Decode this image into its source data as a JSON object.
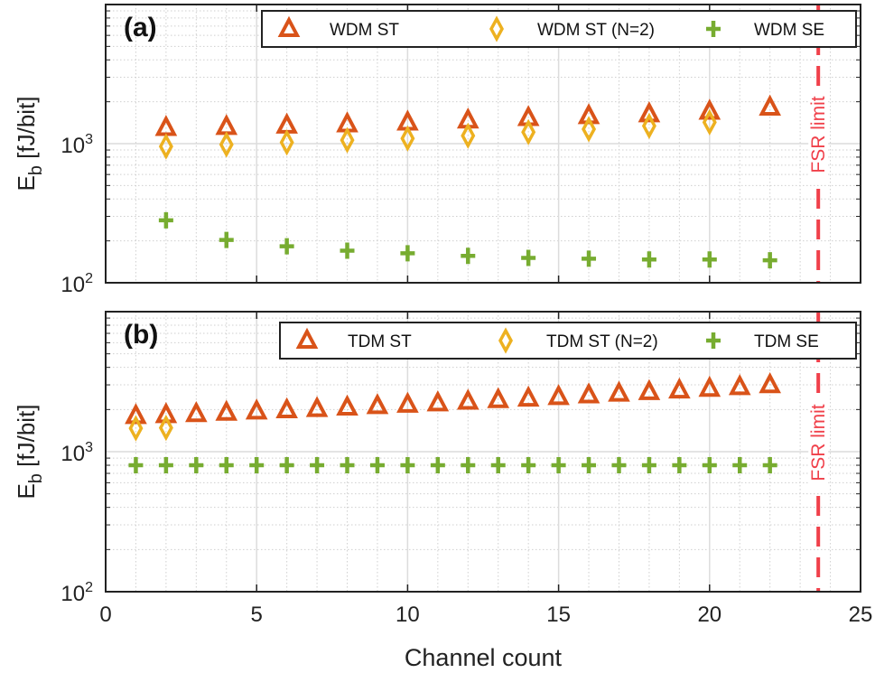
{
  "chart_data": [
    {
      "type": "scatter",
      "panel_label": "(a)",
      "ylabel_main": "E",
      "ylabel_sub": "b",
      "ylabel_unit": " [fJ/bit]",
      "xlim": [
        0,
        25
      ],
      "ylim": [
        100,
        10000
      ],
      "yscale": "log",
      "grid": true,
      "legend_placement": "top-right",
      "annotation": {
        "text": "FSR limit",
        "x": 23.6,
        "color": "#f0404a"
      },
      "series": [
        {
          "name": "WDM ST",
          "marker": "triangle",
          "color": "#d95319",
          "x": [
            2,
            4,
            6,
            8,
            10,
            12,
            14,
            16,
            18,
            20,
            22
          ],
          "y": [
            1300,
            1320,
            1350,
            1380,
            1420,
            1470,
            1530,
            1580,
            1630,
            1700,
            1820
          ]
        },
        {
          "name": "WDM ST (N=2)",
          "marker": "diamond",
          "color": "#edb120",
          "x": [
            2,
            4,
            6,
            8,
            10,
            12,
            14,
            16,
            18,
            20
          ],
          "y": [
            955,
            985,
            1020,
            1060,
            1090,
            1140,
            1210,
            1270,
            1340,
            1425
          ]
        },
        {
          "name": "WDM SE",
          "marker": "plus",
          "color": "#77ac30",
          "x": [
            2,
            4,
            6,
            8,
            10,
            12,
            14,
            16,
            18,
            20,
            22
          ],
          "y": [
            281,
            203,
            183,
            170,
            163,
            156,
            151,
            149,
            147,
            147,
            145
          ]
        }
      ],
      "yticks": [
        {
          "base": "10",
          "exp": "2"
        },
        {
          "base": "10",
          "exp": "3"
        }
      ]
    },
    {
      "type": "scatter",
      "panel_label": "(b)",
      "ylabel_main": "E",
      "ylabel_sub": "b",
      "ylabel_unit": " [fJ/bit]",
      "xlim": [
        0,
        25
      ],
      "ylim": [
        100,
        10000
      ],
      "yscale": "log",
      "grid": true,
      "legend_placement": "top-right",
      "annotation": {
        "text": "FSR limit",
        "x": 23.6,
        "color": "#f0404a"
      },
      "series": [
        {
          "name": "TDM ST",
          "marker": "triangle",
          "color": "#d95319",
          "x": [
            1,
            2,
            3,
            4,
            5,
            6,
            7,
            8,
            9,
            10,
            11,
            12,
            13,
            14,
            15,
            16,
            17,
            18,
            19,
            20,
            21,
            22
          ],
          "y": [
            1800,
            1830,
            1860,
            1900,
            1940,
            1980,
            2020,
            2070,
            2120,
            2170,
            2220,
            2280,
            2340,
            2400,
            2460,
            2530,
            2600,
            2670,
            2740,
            2820,
            2900,
            2990
          ]
        },
        {
          "name": "TDM ST (N=2)",
          "marker": "diamond",
          "color": "#edb120",
          "x": [
            1,
            2
          ],
          "y": [
            1470,
            1480
          ]
        },
        {
          "name": "TDM SE",
          "marker": "plus",
          "color": "#77ac30",
          "x": [
            1,
            2,
            3,
            4,
            5,
            6,
            7,
            8,
            9,
            10,
            11,
            12,
            13,
            14,
            15,
            16,
            17,
            18,
            19,
            20,
            21,
            22
          ],
          "y": [
            800,
            800,
            800,
            800,
            800,
            800,
            800,
            800,
            800,
            800,
            800,
            800,
            800,
            800,
            800,
            800,
            800,
            800,
            800,
            800,
            800,
            800
          ]
        }
      ],
      "yticks": [
        {
          "base": "10",
          "exp": "2"
        },
        {
          "base": "10",
          "exp": "3"
        }
      ],
      "xticks": [
        "0",
        "5",
        "10",
        "15",
        "20",
        "25"
      ],
      "xlabel": "Channel count"
    }
  ]
}
